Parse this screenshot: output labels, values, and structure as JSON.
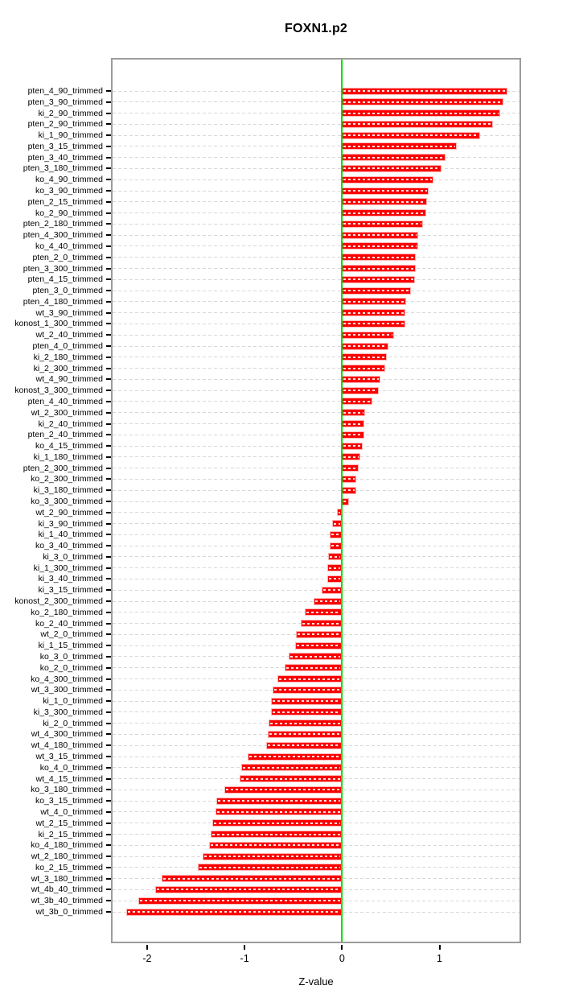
{
  "chart_data": {
    "type": "bar",
    "orientation": "horizontal",
    "title": "FOXN1.p2",
    "xlabel": "Z-value",
    "xlim": [
      -2.37,
      1.84
    ],
    "x_ticks": [
      -2,
      -1,
      0,
      1
    ],
    "grid": "dashed-horizontal",
    "bar_color": "#ff0000",
    "zero_line_color": "#00dd00",
    "categories": [
      "pten_4_90_trimmed",
      "pten_3_90_trimmed",
      "ki_2_90_trimmed",
      "pten_2_90_trimmed",
      "ki_1_90_trimmed",
      "pten_3_15_trimmed",
      "pten_3_40_trimmed",
      "pten_3_180_trimmed",
      "ko_4_90_trimmed",
      "ko_3_90_trimmed",
      "pten_2_15_trimmed",
      "ko_2_90_trimmed",
      "pten_2_180_trimmed",
      "pten_4_300_trimmed",
      "ko_4_40_trimmed",
      "pten_2_0_trimmed",
      "pten_3_300_trimmed",
      "pten_4_15_trimmed",
      "pten_3_0_trimmed",
      "pten_4_180_trimmed",
      "wt_3_90_trimmed",
      "konost_1_300_trimmed",
      "wt_2_40_trimmed",
      "pten_4_0_trimmed",
      "ki_2_180_trimmed",
      "ki_2_300_trimmed",
      "wt_4_90_trimmed",
      "konost_3_300_trimmed",
      "pten_4_40_trimmed",
      "wt_2_300_trimmed",
      "ki_2_40_trimmed",
      "pten_2_40_trimmed",
      "ko_4_15_trimmed",
      "ki_1_180_trimmed",
      "pten_2_300_trimmed",
      "ko_2_300_trimmed",
      "ki_3_180_trimmed",
      "ko_3_300_trimmed",
      "wt_2_90_trimmed",
      "ki_3_90_trimmed",
      "ki_1_40_trimmed",
      "ko_3_40_trimmed",
      "ki_3_0_trimmed",
      "ki_1_300_trimmed",
      "ki_3_40_trimmed",
      "ki_3_15_trimmed",
      "konost_2_300_trimmed",
      "ko_2_180_trimmed",
      "ko_2_40_trimmed",
      "wt_2_0_trimmed",
      "ki_1_15_trimmed",
      "ko_3_0_trimmed",
      "ko_2_0_trimmed",
      "ko_4_300_trimmed",
      "wt_3_300_trimmed",
      "ki_1_0_trimmed",
      "ki_3_300_trimmed",
      "ki_2_0_trimmed",
      "wt_4_300_trimmed",
      "wt_4_180_trimmed",
      "wt_3_15_trimmed",
      "ko_4_0_trimmed",
      "wt_4_15_trimmed",
      "ko_3_180_trimmed",
      "ko_3_15_trimmed",
      "wt_4_0_trimmed",
      "wt_2_15_trimmed",
      "ki_2_15_trimmed",
      "ko_4_180_trimmed",
      "wt_2_180_trimmed",
      "ko_2_15_trimmed",
      "wt_3_180_trimmed",
      "wt_4b_40_trimmed",
      "wt_3b_40_trimmed",
      "wt_3b_0_trimmed"
    ],
    "values": [
      1.7,
      1.66,
      1.62,
      1.55,
      1.42,
      1.18,
      1.06,
      1.02,
      0.94,
      0.89,
      0.87,
      0.86,
      0.83,
      0.78,
      0.78,
      0.76,
      0.76,
      0.75,
      0.71,
      0.66,
      0.65,
      0.65,
      0.53,
      0.48,
      0.46,
      0.44,
      0.39,
      0.38,
      0.31,
      0.24,
      0.23,
      0.23,
      0.21,
      0.19,
      0.17,
      0.15,
      0.15,
      0.07,
      -0.05,
      -0.1,
      -0.13,
      -0.13,
      -0.14,
      -0.15,
      -0.15,
      -0.21,
      -0.29,
      -0.38,
      -0.42,
      -0.47,
      -0.48,
      -0.55,
      -0.59,
      -0.66,
      -0.71,
      -0.73,
      -0.73,
      -0.75,
      -0.76,
      -0.78,
      -0.97,
      -1.03,
      -1.05,
      -1.21,
      -1.29,
      -1.3,
      -1.33,
      -1.35,
      -1.36,
      -1.43,
      -1.48,
      -1.85,
      -1.92,
      -2.09,
      -2.21
    ]
  }
}
